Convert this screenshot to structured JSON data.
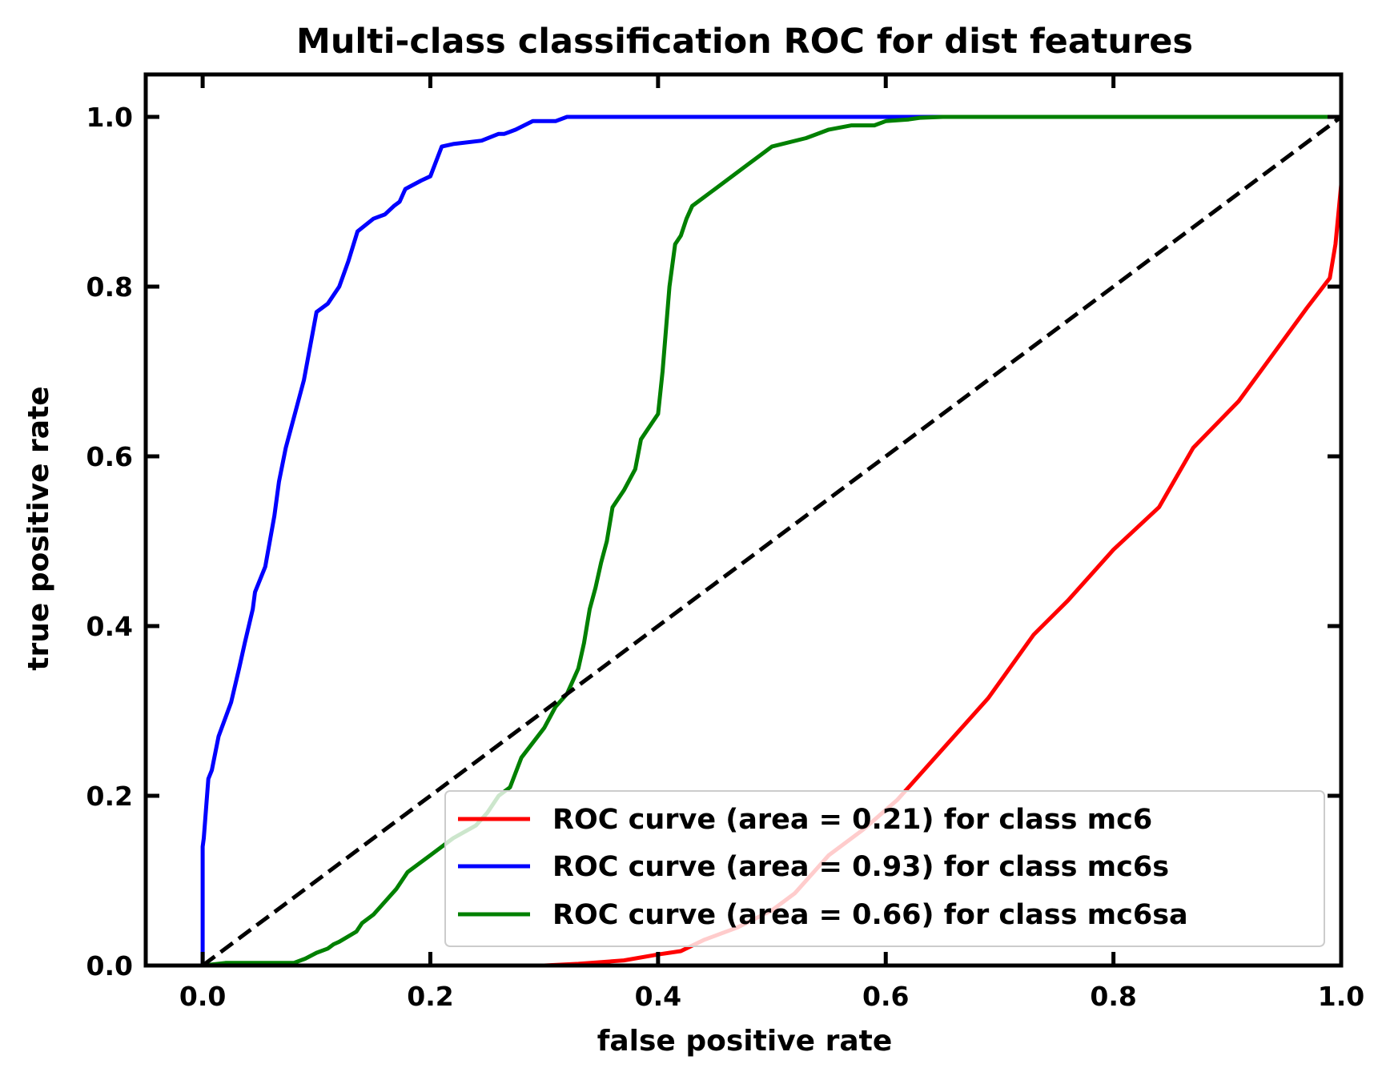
{
  "chart_data": {
    "type": "line",
    "title": "Multi-class classification ROC for dist features",
    "xlabel": "false positive rate",
    "ylabel": "true positive rate",
    "xlim": [
      -0.05,
      1.0
    ],
    "ylim": [
      0.0,
      1.05
    ],
    "xticks": [
      0.0,
      0.2,
      0.4,
      0.6,
      0.8,
      1.0
    ],
    "xtick_labels": [
      "0.0",
      "0.2",
      "0.4",
      "0.6",
      "0.8",
      "1.0"
    ],
    "yticks": [
      0.0,
      0.2,
      0.4,
      0.6,
      0.8,
      1.0
    ],
    "ytick_labels": [
      "0.0",
      "0.2",
      "0.4",
      "0.6",
      "0.8",
      "1.0"
    ],
    "grid": false,
    "legend_position": "lower-right",
    "series": [
      {
        "name": "ROC curve (area = 0.21) for class mc6",
        "color": "#ff0000",
        "x": [
          0.0,
          0.3,
          0.33,
          0.37,
          0.4,
          0.42,
          0.44,
          0.47,
          0.5,
          0.52,
          0.55,
          0.58,
          0.61,
          0.65,
          0.69,
          0.73,
          0.76,
          0.8,
          0.84,
          0.87,
          0.91,
          0.94,
          0.97,
          0.99,
          0.995,
          1.0
        ],
        "y": [
          0.0,
          0.0,
          0.002,
          0.006,
          0.013,
          0.017,
          0.03,
          0.045,
          0.065,
          0.085,
          0.13,
          0.16,
          0.195,
          0.255,
          0.315,
          0.39,
          0.43,
          0.49,
          0.54,
          0.61,
          0.665,
          0.72,
          0.775,
          0.81,
          0.85,
          0.92
        ]
      },
      {
        "name": "ROC curve (area = 0.93) for class mc6s",
        "color": "#0000ff",
        "x": [
          0.0,
          0.0,
          0.001,
          0.005,
          0.008,
          0.014,
          0.025,
          0.032,
          0.037,
          0.044,
          0.046,
          0.055,
          0.063,
          0.067,
          0.073,
          0.083,
          0.089,
          0.1,
          0.11,
          0.12,
          0.128,
          0.136,
          0.15,
          0.16,
          0.168,
          0.173,
          0.178,
          0.192,
          0.2,
          0.21,
          0.22,
          0.245,
          0.26,
          0.265,
          0.275,
          0.29,
          0.31,
          0.32,
          0.34,
          1.0
        ],
        "y": [
          0.0,
          0.14,
          0.15,
          0.22,
          0.23,
          0.27,
          0.31,
          0.35,
          0.38,
          0.42,
          0.44,
          0.47,
          0.53,
          0.57,
          0.61,
          0.66,
          0.69,
          0.77,
          0.78,
          0.8,
          0.83,
          0.865,
          0.88,
          0.885,
          0.895,
          0.9,
          0.915,
          0.925,
          0.93,
          0.965,
          0.968,
          0.972,
          0.98,
          0.98,
          0.985,
          0.995,
          0.995,
          1.0,
          1.0,
          1.0
        ]
      },
      {
        "name": "ROC curve (area = 0.66) for class mc6sa",
        "color": "#008000",
        "x": [
          0.0,
          0.02,
          0.08,
          0.09,
          0.1,
          0.11,
          0.115,
          0.12,
          0.135,
          0.14,
          0.15,
          0.16,
          0.17,
          0.18,
          0.19,
          0.2,
          0.22,
          0.24,
          0.25,
          0.26,
          0.27,
          0.28,
          0.3,
          0.31,
          0.32,
          0.33,
          0.335,
          0.34,
          0.345,
          0.35,
          0.355,
          0.36,
          0.365,
          0.37,
          0.38,
          0.385,
          0.395,
          0.4,
          0.404,
          0.407,
          0.41,
          0.415,
          0.42,
          0.425,
          0.43,
          0.44,
          0.45,
          0.46,
          0.47,
          0.48,
          0.49,
          0.5,
          0.53,
          0.55,
          0.57,
          0.59,
          0.6,
          0.61,
          0.62,
          0.63,
          0.65,
          1.0
        ],
        "y": [
          0.0,
          0.003,
          0.003,
          0.008,
          0.015,
          0.02,
          0.025,
          0.028,
          0.04,
          0.05,
          0.06,
          0.075,
          0.09,
          0.11,
          0.12,
          0.13,
          0.15,
          0.165,
          0.18,
          0.2,
          0.21,
          0.245,
          0.28,
          0.305,
          0.32,
          0.35,
          0.38,
          0.42,
          0.445,
          0.475,
          0.5,
          0.54,
          0.55,
          0.56,
          0.585,
          0.62,
          0.64,
          0.65,
          0.7,
          0.75,
          0.8,
          0.85,
          0.86,
          0.88,
          0.895,
          0.905,
          0.915,
          0.925,
          0.935,
          0.945,
          0.955,
          0.965,
          0.975,
          0.985,
          0.99,
          0.99,
          0.995,
          0.996,
          0.997,
          0.999,
          1.0,
          1.0
        ]
      }
    ],
    "reference_line": {
      "color": "#000000",
      "style": "dashed",
      "x": [
        0.0,
        1.0
      ],
      "y": [
        0.0,
        1.0
      ]
    }
  }
}
